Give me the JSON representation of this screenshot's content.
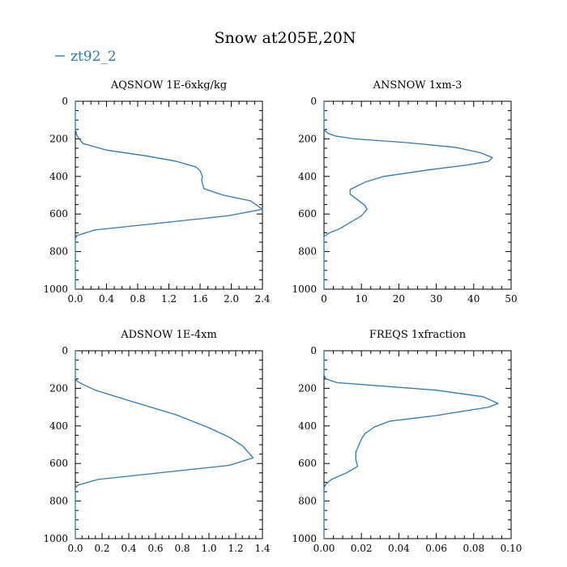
{
  "title": "Snow at205E,20N",
  "legend": {
    "label": "zt92_2",
    "color": "#2a7ab9"
  },
  "chart_data": [
    {
      "type": "line",
      "title": "AQSNOW  1E-6xkg/kg",
      "xlim": [
        0,
        2.4
      ],
      "ylim": [
        1000,
        0
      ],
      "xticks": [
        "0.0",
        "0.4",
        "0.8",
        "1.2",
        "1.6",
        "2.0",
        "2.4"
      ],
      "yticks": [
        "0",
        "200",
        "400",
        "600",
        "800",
        "1000"
      ],
      "series": [
        {
          "name": "zt92_2",
          "x": [
            0,
            0,
            0.02,
            0.05,
            0.1,
            0.4,
            0.9,
            1.3,
            1.55,
            1.6,
            1.63,
            1.62,
            1.65,
            1.9,
            2.25,
            2.4,
            1.95,
            0.25,
            0.02,
            0,
            0
          ],
          "y": [
            0,
            150,
            180,
            200,
            225,
            260,
            290,
            320,
            350,
            370,
            400,
            420,
            465,
            500,
            530,
            575,
            610,
            685,
            715,
            730,
            1000
          ]
        }
      ]
    },
    {
      "type": "line",
      "title": "ANSNOW  1xm-3",
      "xlim": [
        0,
        50
      ],
      "ylim": [
        1000,
        0
      ],
      "xticks": [
        "0",
        "10",
        "20",
        "30",
        "40",
        "50"
      ],
      "yticks": [
        "0",
        "200",
        "400",
        "600",
        "800",
        "1000"
      ],
      "series": [
        {
          "name": "zt92_2",
          "x": [
            0,
            0,
            1,
            3,
            8,
            22,
            35,
            42,
            45,
            44,
            38,
            28,
            16,
            11,
            7,
            7,
            9,
            11,
            11.5,
            10,
            4,
            1.5,
            0,
            0
          ],
          "y": [
            0,
            150,
            170,
            185,
            200,
            220,
            245,
            275,
            300,
            320,
            340,
            365,
            400,
            430,
            470,
            495,
            525,
            555,
            575,
            610,
            680,
            700,
            720,
            1000
          ]
        }
      ]
    },
    {
      "type": "line",
      "title": "ADSNOW  1E-4xm",
      "xlim": [
        0,
        1.4
      ],
      "ylim": [
        1000,
        0
      ],
      "xticks": [
        "0.0",
        "0.2",
        "0.4",
        "0.6",
        "0.8",
        "1.0",
        "1.2",
        "1.4"
      ],
      "yticks": [
        "0",
        "200",
        "400",
        "600",
        "800",
        "1000"
      ],
      "series": [
        {
          "name": "zt92_2",
          "x": [
            0,
            0,
            0.02,
            0.06,
            0.15,
            0.4,
            0.75,
            1.0,
            1.15,
            1.25,
            1.33,
            1.15,
            0.17,
            0.02,
            0,
            0
          ],
          "y": [
            0,
            150,
            165,
            180,
            210,
            265,
            340,
            410,
            460,
            505,
            570,
            610,
            685,
            715,
            730,
            1000
          ]
        }
      ]
    },
    {
      "type": "line",
      "title": "FREQS  1xfraction",
      "xlim": [
        0,
        0.1
      ],
      "ylim": [
        1000,
        0
      ],
      "xticks": [
        "0.00",
        "0.02",
        "0.04",
        "0.06",
        "0.08",
        "0.10"
      ],
      "yticks": [
        "0",
        "200",
        "400",
        "600",
        "800",
        "1000"
      ],
      "series": [
        {
          "name": "zt92_2",
          "x": [
            0,
            0,
            0.001,
            0.007,
            0.06,
            0.085,
            0.093,
            0.088,
            0.06,
            0.035,
            0.027,
            0.022,
            0.02,
            0.017,
            0.017,
            0.018,
            0.012,
            0.004,
            0.001,
            0,
            0
          ],
          "y": [
            0,
            130,
            150,
            170,
            210,
            245,
            280,
            300,
            345,
            375,
            405,
            440,
            470,
            540,
            580,
            615,
            650,
            685,
            710,
            730,
            1000
          ]
        }
      ]
    }
  ]
}
